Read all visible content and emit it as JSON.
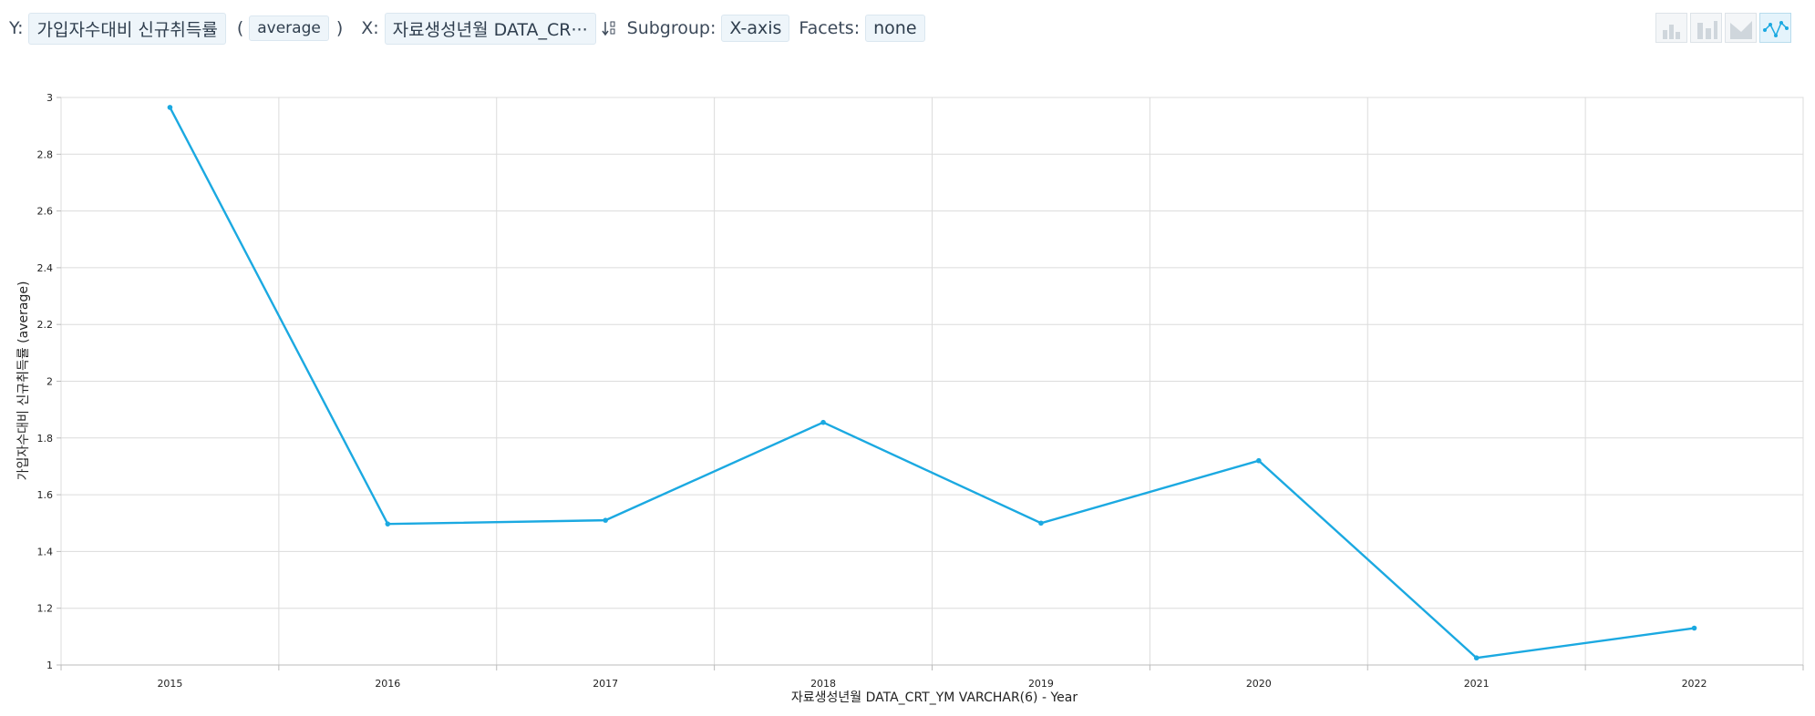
{
  "toolbar": {
    "y_label": "Y:",
    "y_field": "가입자수대비 신규취득률",
    "paren_open": "(",
    "aggregation": "average",
    "paren_close": ")",
    "x_label": "X:",
    "x_field": "자료생성년월 DATA_CR···",
    "subgroup_label": "Subgroup:",
    "subgroup": "X-axis",
    "facets_label": "Facets:",
    "facets": "none"
  },
  "chart_data": {
    "type": "line",
    "x_label": "자료생성년월 DATA_CRT_YM VARCHAR(6) - Year",
    "y_label": "가입자수대비 신규취득률 (average)",
    "categories": [
      "2015",
      "2016",
      "2017",
      "2018",
      "2019",
      "2020",
      "2021",
      "2022"
    ],
    "series": [
      {
        "name": "가입자수대비 신규취득률",
        "color": "#1ba9e1",
        "values": [
          2.965,
          1.497,
          1.51,
          1.855,
          1.5,
          1.72,
          1.025,
          1.13
        ]
      }
    ],
    "ylim": [
      1,
      3
    ],
    "yticks": [
      1,
      1.2,
      1.4,
      1.6,
      1.8,
      2,
      2.2,
      2.4,
      2.6,
      2.8,
      3
    ],
    "grid": true
  }
}
